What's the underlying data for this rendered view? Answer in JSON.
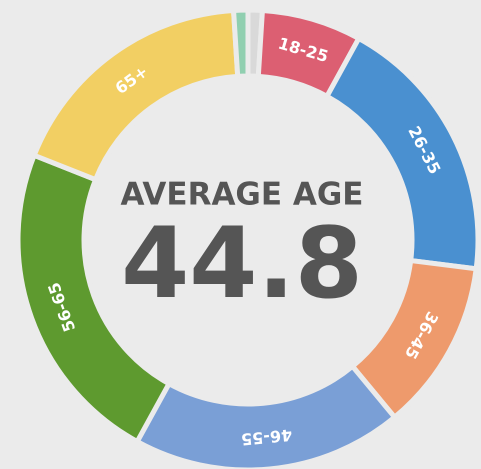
{
  "chart_data": {
    "type": "donut",
    "title": "AVERAGE AGE",
    "subtitle": 44.8,
    "categories": [
      null,
      "18-25",
      "26-35",
      "36-45",
      "46-55",
      "56-65",
      "65+",
      null
    ],
    "values": [
      1,
      7,
      19,
      12,
      19,
      23,
      18,
      1
    ],
    "colors": [
      "#d9d9d9",
      "#dc5f72",
      "#4a90d0",
      "#ee9a6c",
      "#7a9fd6",
      "#5e9a2f",
      "#f2cf63",
      "#90cfb0"
    ]
  }
}
